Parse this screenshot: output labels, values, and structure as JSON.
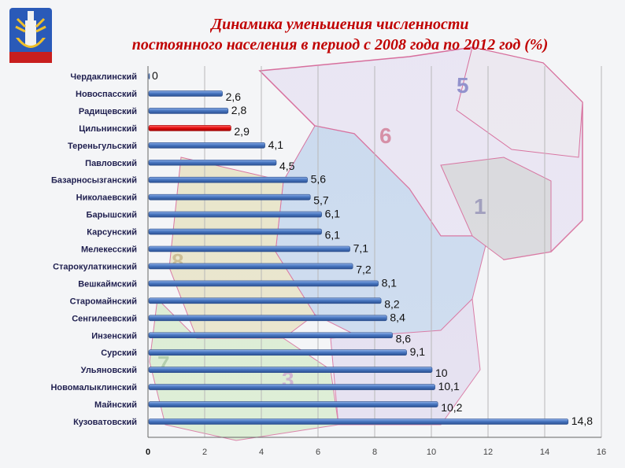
{
  "header": {
    "title_line1": "Динамика уменьшения  численности",
    "title_line2": "постоянного  населения в период  с 2008 года по 2012 год  (%)",
    "emblem_icon": "ulyanovsk-coat-of-arms-icon"
  },
  "map_labels": [
    "5",
    "6",
    "1",
    "8",
    "7",
    "3"
  ],
  "colors": {
    "bar": "#4a78c2",
    "bar_highlight": "#e81010",
    "title": "#c00000",
    "label_text": "#1f1f4f",
    "grid": "#b8b8b8"
  },
  "chart_data": {
    "type": "bar",
    "orientation": "horizontal",
    "title": "Динамика уменьшения  численности постоянного  населения в период  с 2008 года по 2012 год  (%)",
    "categories": [
      "Чердаклинский",
      "Новоспасский",
      "Радищевский",
      "Цильнинский",
      "Тереньгульский",
      "Павловский",
      "Базарносызганский",
      "Николаевский",
      "Барышский",
      "Карсунский",
      "Мелекесский",
      "Старокулаткинский",
      "Вешкаймский",
      "Старомайнский",
      "Сенгилеевский",
      "Инзенский",
      "Сурский",
      "Ульяновский",
      "Новомалыклинский",
      "Майнский",
      "Кузоватовский"
    ],
    "values": [
      0,
      2.6,
      2.8,
      2.9,
      4.1,
      4.5,
      5.6,
      5.7,
      6.1,
      6.1,
      7.1,
      7.2,
      8.1,
      8.2,
      8.4,
      8.6,
      9.1,
      10,
      10.1,
      10.2,
      14.8
    ],
    "value_labels": [
      "0",
      "2,6",
      "2,8",
      "2,9",
      "4,1",
      "4,5",
      "5,6",
      "5,7",
      "6,1",
      "6,1",
      "7,1",
      "7,2",
      "8,1",
      "8,2",
      "8,4",
      "8,6",
      "9,1",
      "10",
      "10,1",
      "10,2",
      "14,8"
    ],
    "highlight": "Цильнинский",
    "xlim": [
      0,
      16
    ],
    "xticks": [
      "0",
      "2",
      "4",
      "6",
      "8",
      "10",
      "12",
      "14",
      "16"
    ],
    "grid": true
  }
}
